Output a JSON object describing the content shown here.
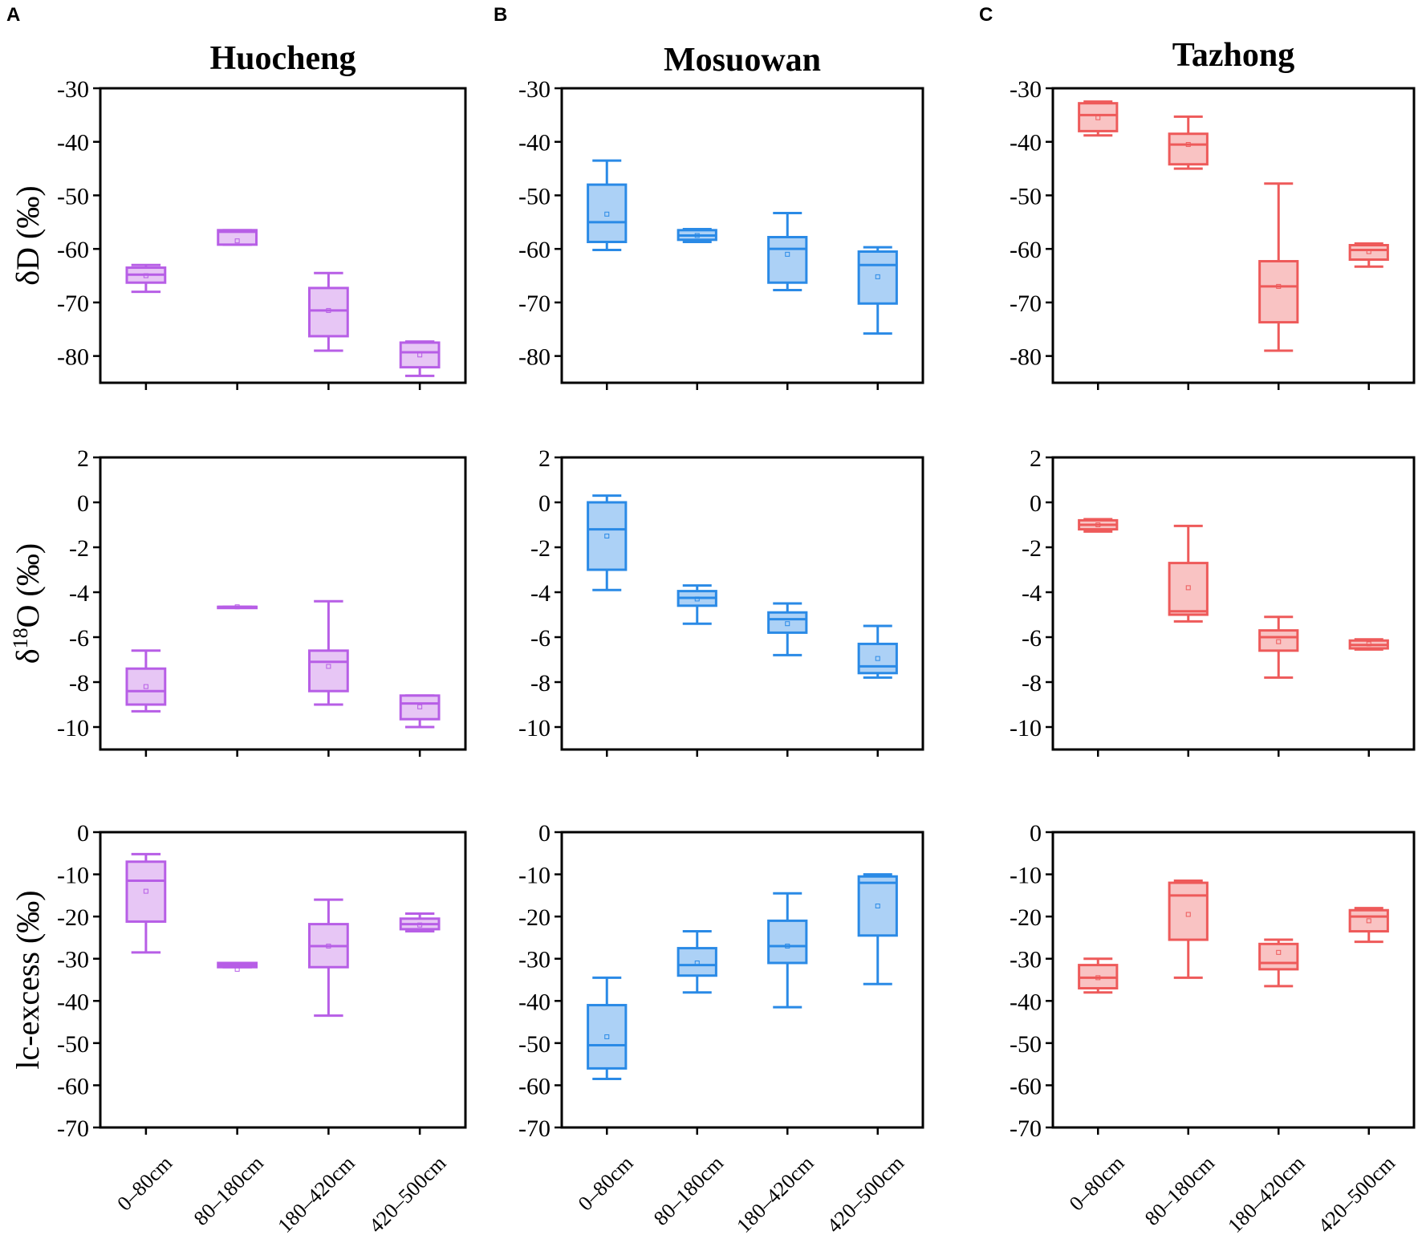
{
  "panel_letters": [
    "A",
    "B",
    "C"
  ],
  "sites": [
    {
      "title": "Huocheng",
      "color": "#b75ee6",
      "fill": "#e7c6f5"
    },
    {
      "title": "Mosuowan",
      "color": "#2a8ae6",
      "fill": "#acd1f6"
    },
    {
      "title": "Tazhong",
      "color": "#ee5a5a",
      "fill": "#f9c3c3"
    }
  ],
  "categories": [
    "0–80cm",
    "80–180cm",
    "180–420cm",
    "420–500cm"
  ],
  "rows": [
    {
      "ylabel": "δD (‰)",
      "ylabel_base": "δD (‰)",
      "ylim": [
        -85,
        -30
      ],
      "ticks": [
        -30,
        -40,
        -50,
        -60,
        -70,
        -80
      ]
    },
    {
      "ylabel": "δ18O (‰)",
      "ylabel_base": "δ",
      "ylabel_sup": "18",
      "ylabel_rest": "O (‰)",
      "ylim": [
        -11,
        2
      ],
      "ticks": [
        2,
        0,
        -2,
        -4,
        -6,
        -8,
        -10
      ]
    },
    {
      "ylabel": "lc-excess (‰)",
      "ylabel_base": "lc-excess (‰)",
      "ylim": [
        -70,
        0
      ],
      "ticks": [
        0,
        -10,
        -20,
        -30,
        -40,
        -50,
        -60,
        -70
      ]
    }
  ],
  "chart_data": [
    {
      "type": "box",
      "site": "Huocheng",
      "variable": "δD (‰)",
      "categories": [
        "0–80cm",
        "80–180cm",
        "180–420cm",
        "420–500cm"
      ],
      "boxes": [
        {
          "min": -68,
          "q1": -66.3,
          "median": -64.8,
          "q3": -63.5,
          "max": -63,
          "mean": -65
        },
        {
          "min": -59.2,
          "q1": -59.2,
          "median": -56.8,
          "q3": -56.5,
          "max": -56.5,
          "mean": -58.5
        },
        {
          "min": -79,
          "q1": -76.3,
          "median": -71.5,
          "q3": -67.3,
          "max": -64.5,
          "mean": -71.5
        },
        {
          "min": -83.7,
          "q1": -82.1,
          "median": -79.3,
          "q3": -77.5,
          "max": -77.3,
          "mean": -79.8
        }
      ]
    },
    {
      "type": "box",
      "site": "Huocheng",
      "variable": "δ18O (‰)",
      "categories": [
        "0–80cm",
        "80–180cm",
        "180–420cm",
        "420–500cm"
      ],
      "boxes": [
        {
          "min": -9.3,
          "q1": -9,
          "median": -8.4,
          "q3": -7.4,
          "max": -6.6,
          "mean": -8.2
        },
        {
          "min": -4.65,
          "q1": -4.65,
          "median": -4.65,
          "q3": -4.65,
          "max": -4.65,
          "mean": -4.65
        },
        {
          "min": -9,
          "q1": -8.4,
          "median": -7.1,
          "q3": -6.6,
          "max": -4.4,
          "mean": -7.3
        },
        {
          "min": -10,
          "q1": -9.65,
          "median": -8.95,
          "q3": -8.6,
          "max": -8.6,
          "mean": -9.1
        }
      ]
    },
    {
      "type": "box",
      "site": "Huocheng",
      "variable": "lc-excess (‰)",
      "categories": [
        "0–80cm",
        "80–180cm",
        "180–420cm",
        "420–500cm"
      ],
      "boxes": [
        {
          "min": -28.5,
          "q1": -21.2,
          "median": -11.5,
          "q3": -7,
          "max": -5.2,
          "mean": -14
        },
        {
          "min": -32,
          "q1": -32,
          "median": -31.5,
          "q3": -31,
          "max": -31,
          "mean": -32.5
        },
        {
          "min": -43.5,
          "q1": -32,
          "median": -27,
          "q3": -21.8,
          "max": -16,
          "mean": -27
        },
        {
          "min": -23.5,
          "q1": -23,
          "median": -21.8,
          "q3": -20.5,
          "max": -19.3,
          "mean": -22
        }
      ]
    },
    {
      "type": "box",
      "site": "Mosuowan",
      "variable": "δD (‰)",
      "categories": [
        "0–80cm",
        "80–180cm",
        "180–420cm",
        "420–500cm"
      ],
      "boxes": [
        {
          "min": -60.2,
          "q1": -58.7,
          "median": -55,
          "q3": -48,
          "max": -43.5,
          "mean": -53.5
        },
        {
          "min": -58.7,
          "q1": -58.3,
          "median": -57.5,
          "q3": -56.5,
          "max": -56.3,
          "mean": -57.5
        },
        {
          "min": -67.7,
          "q1": -66.3,
          "median": -60,
          "q3": -57.8,
          "max": -53.3,
          "mean": -61
        },
        {
          "min": -75.8,
          "q1": -70.2,
          "median": -63,
          "q3": -60.5,
          "max": -59.7,
          "mean": -65.2
        }
      ]
    },
    {
      "type": "box",
      "site": "Mosuowan",
      "variable": "δ18O (‰)",
      "categories": [
        "0–80cm",
        "80–180cm",
        "180–420cm",
        "420–500cm"
      ],
      "boxes": [
        {
          "min": -3.9,
          "q1": -3,
          "median": -1.2,
          "q3": 0,
          "max": 0.3,
          "mean": -1.5
        },
        {
          "min": -5.4,
          "q1": -4.6,
          "median": -4.25,
          "q3": -3.95,
          "max": -3.7,
          "mean": -4.3
        },
        {
          "min": -6.8,
          "q1": -5.8,
          "median": -5.2,
          "q3": -4.9,
          "max": -4.5,
          "mean": -5.4
        },
        {
          "min": -7.8,
          "q1": -7.6,
          "median": -7.3,
          "q3": -6.3,
          "max": -5.5,
          "mean": -6.95
        }
      ]
    },
    {
      "type": "box",
      "site": "Mosuowan",
      "variable": "lc-excess (‰)",
      "categories": [
        "0–80cm",
        "80–180cm",
        "180–420cm",
        "420–500cm"
      ],
      "boxes": [
        {
          "min": -58.5,
          "q1": -56,
          "median": -50.5,
          "q3": -41,
          "max": -34.5,
          "mean": -48.5
        },
        {
          "min": -38,
          "q1": -34,
          "median": -31.5,
          "q3": -27.5,
          "max": -23.5,
          "mean": -31
        },
        {
          "min": -41.5,
          "q1": -31,
          "median": -27,
          "q3": -21,
          "max": -14.5,
          "mean": -27
        },
        {
          "min": -36,
          "q1": -24.5,
          "median": -12,
          "q3": -10.5,
          "max": -10,
          "mean": -17.5
        }
      ]
    },
    {
      "type": "box",
      "site": "Tazhong",
      "variable": "δD (‰)",
      "categories": [
        "0–80cm",
        "80–180cm",
        "180–420cm",
        "420–500cm"
      ],
      "boxes": [
        {
          "min": -38.8,
          "q1": -38,
          "median": -35,
          "q3": -32.8,
          "max": -32.5,
          "mean": -35.5
        },
        {
          "min": -45,
          "q1": -44.2,
          "median": -40.5,
          "q3": -38.5,
          "max": -35.3,
          "mean": -40.5
        },
        {
          "min": -79,
          "q1": -73.7,
          "median": -67,
          "q3": -62.3,
          "max": -47.8,
          "mean": -67
        },
        {
          "min": -63.3,
          "q1": -62,
          "median": -60.2,
          "q3": -59.3,
          "max": -59,
          "mean": -60.5
        }
      ]
    },
    {
      "type": "box",
      "site": "Tazhong",
      "variable": "δ18O (‰)",
      "categories": [
        "0–80cm",
        "80–180cm",
        "180–420cm",
        "420–500cm"
      ],
      "boxes": [
        {
          "min": -1.3,
          "q1": -1.2,
          "median": -1,
          "q3": -0.8,
          "max": -0.75,
          "mean": -1
        },
        {
          "min": -5.3,
          "q1": -5,
          "median": -4.85,
          "q3": -2.7,
          "max": -1.05,
          "mean": -3.8
        },
        {
          "min": -7.8,
          "q1": -6.6,
          "median": -6,
          "q3": -5.7,
          "max": -5.1,
          "mean": -6.2
        },
        {
          "min": -6.55,
          "q1": -6.5,
          "median": -6.35,
          "q3": -6.15,
          "max": -6.1,
          "mean": -6.3
        }
      ]
    },
    {
      "type": "box",
      "site": "Tazhong",
      "variable": "lc-excess (‰)",
      "categories": [
        "0–80cm",
        "80–180cm",
        "180–420cm",
        "420–500cm"
      ],
      "boxes": [
        {
          "min": -38,
          "q1": -37,
          "median": -34.5,
          "q3": -31.5,
          "max": -30,
          "mean": -34.5
        },
        {
          "min": -34.5,
          "q1": -25.5,
          "median": -15,
          "q3": -12,
          "max": -11.5,
          "mean": -19.5
        },
        {
          "min": -36.5,
          "q1": -32.5,
          "median": -31,
          "q3": -26.5,
          "max": -25.5,
          "mean": -28.5
        },
        {
          "min": -26,
          "q1": -23.5,
          "median": -20,
          "q3": -18.5,
          "max": -18,
          "mean": -21
        }
      ]
    }
  ]
}
